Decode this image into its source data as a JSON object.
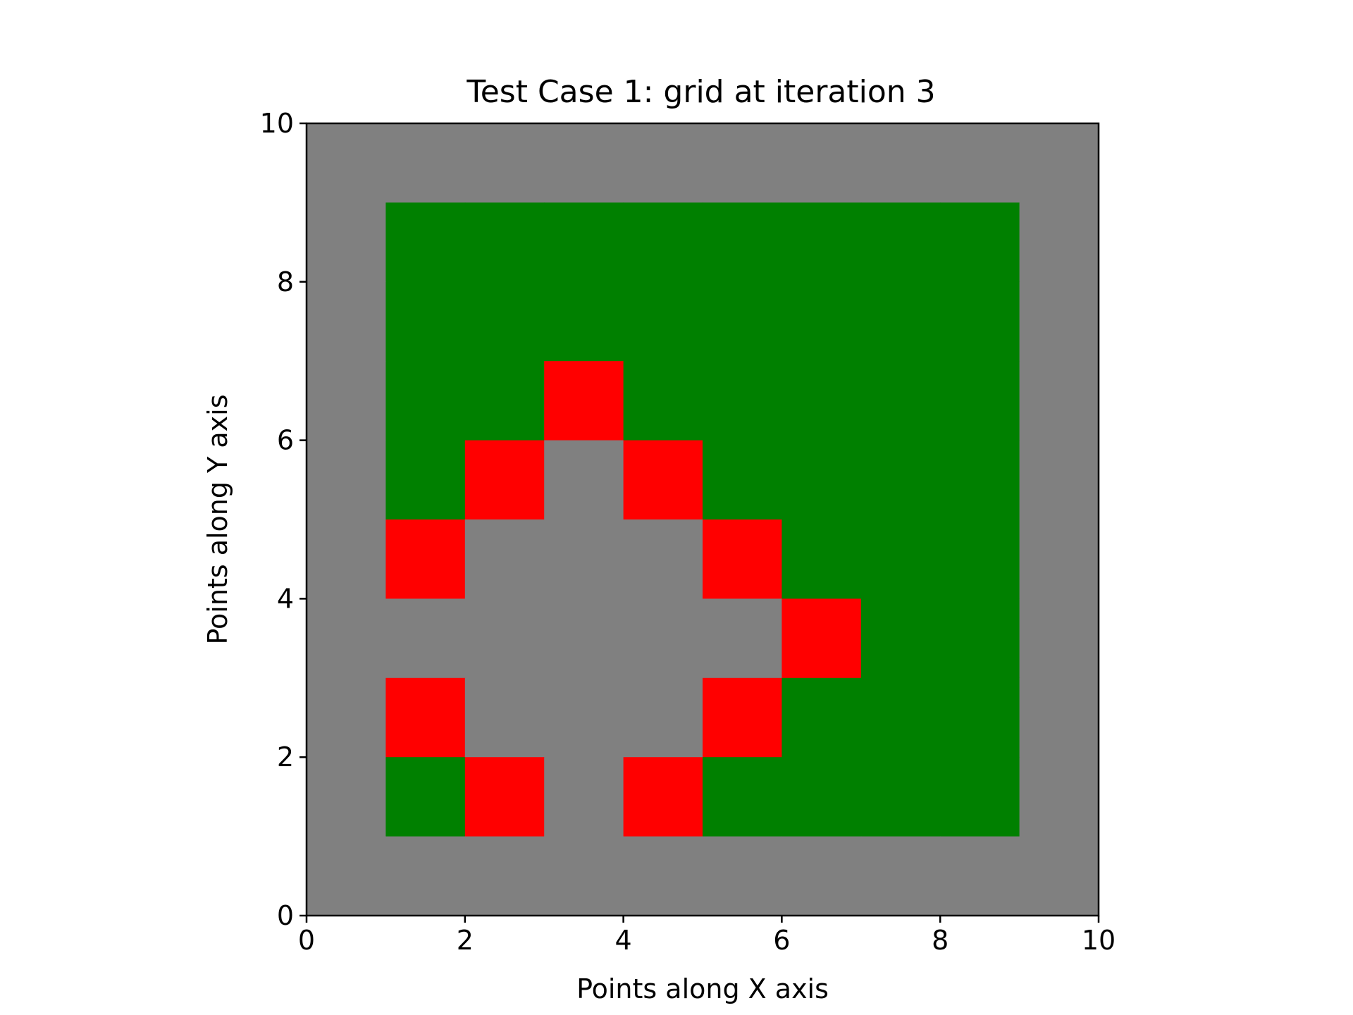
{
  "chart_data": {
    "type": "heatmap",
    "title": "Test Case 1: grid at iteration 3",
    "xlabel": "Points along X axis",
    "ylabel": "Points along Y axis",
    "xlim": [
      0,
      10
    ],
    "ylim": [
      0,
      10
    ],
    "xticks": [
      "0",
      "2",
      "4",
      "6",
      "8",
      "10"
    ],
    "yticks": [
      "0",
      "2",
      "4",
      "6",
      "8",
      "10"
    ],
    "grid": false,
    "legend": "none",
    "colors": {
      "G": "#808080",
      "F": "#008000",
      "R": "#ff0000"
    },
    "cell_rows_top_to_bottom": [
      "GGGGGGGGGG",
      "GFFFFFFFFG",
      "GFFFFFFFFG",
      "GFFRFFFFFG",
      "GFRGRFFFFG",
      "GRGGGRFFFG",
      "GGGGGGRFFG",
      "GRGGGRFFFG",
      "GFRGRFFFFG",
      "GGGGGGGGGG"
    ]
  }
}
